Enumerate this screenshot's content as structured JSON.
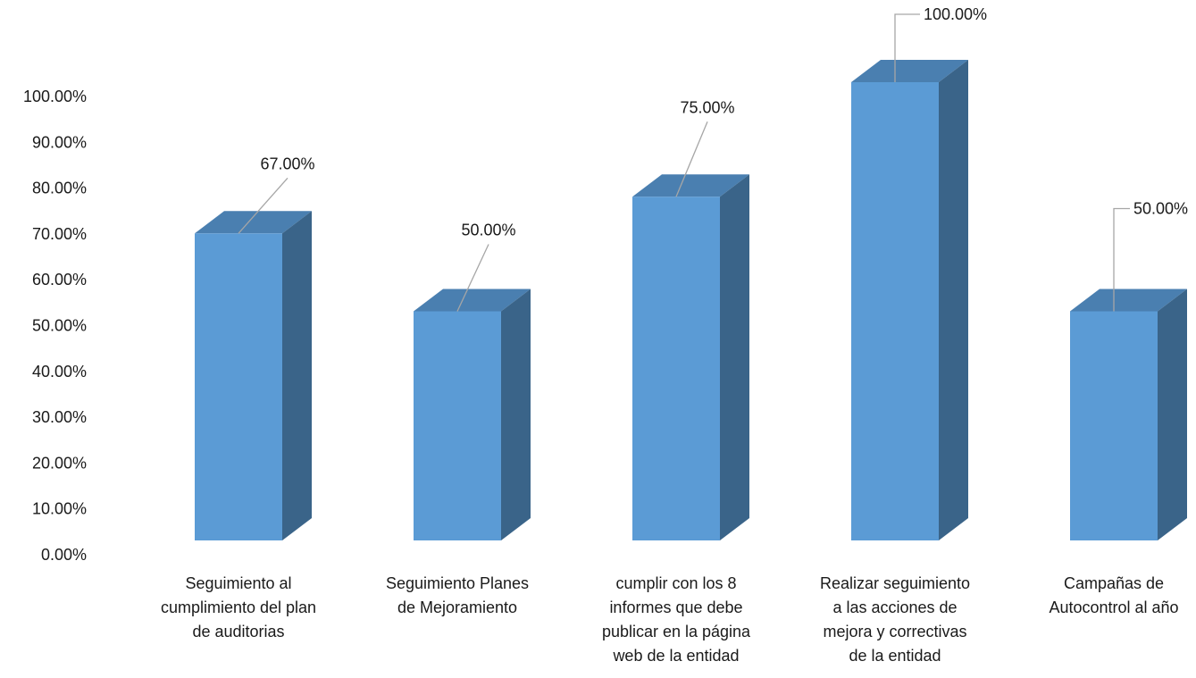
{
  "chart_data": {
    "type": "bar",
    "style": "3d-column",
    "categories": [
      "Seguimiento al cumplimiento del plan de auditorias",
      "Seguimiento  Planes de Mejoramiento",
      "cumplir con los 8 informes que debe publicar en la página web de la entidad",
      "Realizar  seguimiento a las acciones de mejora y correctivas de la entidad",
      "Campañas de Autocontrol al año"
    ],
    "category_lines": [
      [
        "Seguimiento al",
        "cumplimiento del plan",
        "de auditorias"
      ],
      [
        "Seguimiento  Planes",
        "de Mejoramiento"
      ],
      [
        "cumplir con los 8",
        "informes que debe",
        "publicar en la página",
        "web de la entidad"
      ],
      [
        "Realizar  seguimiento",
        "a las acciones de",
        "mejora y correctivas",
        "de la entidad"
      ],
      [
        "Campañas de",
        "Autocontrol al año"
      ]
    ],
    "values": [
      0.67,
      0.5,
      0.75,
      1.0,
      0.5
    ],
    "data_labels": [
      "67.00%",
      "50.00%",
      "75.00%",
      "100.00%",
      "50.00%"
    ],
    "y_ticks": [
      "0.00%",
      "10.00%",
      "20.00%",
      "30.00%",
      "40.00%",
      "50.00%",
      "60.00%",
      "70.00%",
      "80.00%",
      "90.00%",
      "100.00%"
    ],
    "ylim": [
      0,
      1.0
    ],
    "grid": false,
    "legend": "none",
    "title": "",
    "xlabel": "",
    "ylabel": "",
    "colors": {
      "front": "#5b9bd5",
      "top": "#4a7fb0",
      "side": "#3a6489",
      "leader": "#a6a6a6"
    }
  }
}
